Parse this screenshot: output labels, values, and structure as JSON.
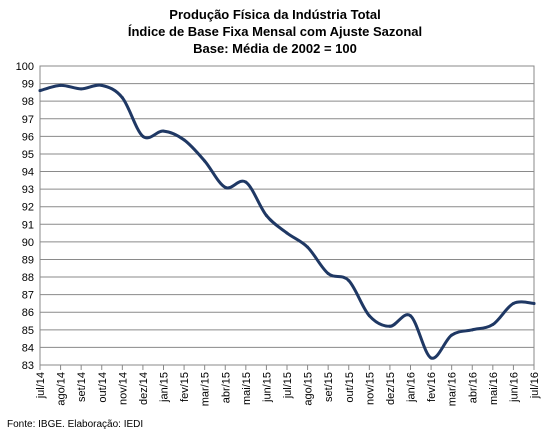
{
  "title_lines": [
    "Produção Física da Indústria Total",
    "Índice de Base Fixa Mensal com Ajuste Sazonal",
    "Base: Média de 2002 = 100"
  ],
  "source": "Fonte: IBGE. Elaboração: IEDI",
  "chart_data": {
    "type": "line",
    "title": "Produção Física da Indústria Total — Índice de Base Fixa Mensal com Ajuste Sazonal — Base: Média de 2002 = 100",
    "xlabel": "",
    "ylabel": "",
    "ylim": [
      83,
      100
    ],
    "yticks": [
      83,
      84,
      85,
      86,
      87,
      88,
      89,
      90,
      91,
      92,
      93,
      94,
      95,
      96,
      97,
      98,
      99,
      100
    ],
    "grid": "horizontal",
    "legend": "none",
    "line_color": "#1f3864",
    "categories": [
      "jul/14",
      "ago/14",
      "set/14",
      "out/14",
      "nov/14",
      "dez/14",
      "jan/15",
      "fev/15",
      "mar/15",
      "abr/15",
      "mai/15",
      "jun/15",
      "jul/15",
      "ago/15",
      "set/15",
      "out/15",
      "nov/15",
      "dez/15",
      "jan/16",
      "fev/16",
      "mar/16",
      "abr/16",
      "mai/16",
      "jun/16",
      "jul/16"
    ],
    "series": [
      {
        "values": [
          98.6,
          98.9,
          98.7,
          98.9,
          98.2,
          96.0,
          96.3,
          95.8,
          94.6,
          93.1,
          93.4,
          91.5,
          90.5,
          89.7,
          88.2,
          87.8,
          85.8,
          85.2,
          85.8,
          83.4,
          84.7,
          85.0,
          85.3,
          86.5,
          86.5
        ]
      }
    ]
  }
}
